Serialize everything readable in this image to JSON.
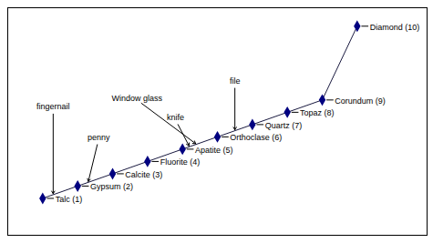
{
  "chart_data": {
    "type": "line",
    "labels": [
      "Talc (1)",
      "Gypsum (2)",
      "Calcite (3)",
      "Fluorite (4)",
      "Apatite (5)",
      "Orthoclase (6)",
      "Quartz (7)",
      "Topaz (8)",
      "Corundum (9)",
      "Diamond (10)"
    ],
    "x": [
      1,
      2,
      3,
      4,
      5,
      6,
      7,
      8,
      9,
      10
    ],
    "values": [
      1,
      2,
      3,
      4,
      5,
      6,
      7,
      8,
      9,
      15
    ],
    "annotations": [
      {
        "text": "fingernail",
        "x": 1.3,
        "y": 1.3
      },
      {
        "text": "penny",
        "x": 2.3,
        "y": 2.3
      },
      {
        "text": "Window glass",
        "x": 5.4,
        "y": 5.4
      },
      {
        "text": "knife",
        "x": 5.2,
        "y": 5.2
      },
      {
        "text": "file",
        "x": 6.5,
        "y": 6.5
      }
    ],
    "xlim": [
      0,
      12
    ],
    "ylim": [
      -2,
      16.5
    ],
    "tick_labels": false,
    "grid": false,
    "color": "#000080",
    "marker": "diamond",
    "line_style": "solid"
  }
}
